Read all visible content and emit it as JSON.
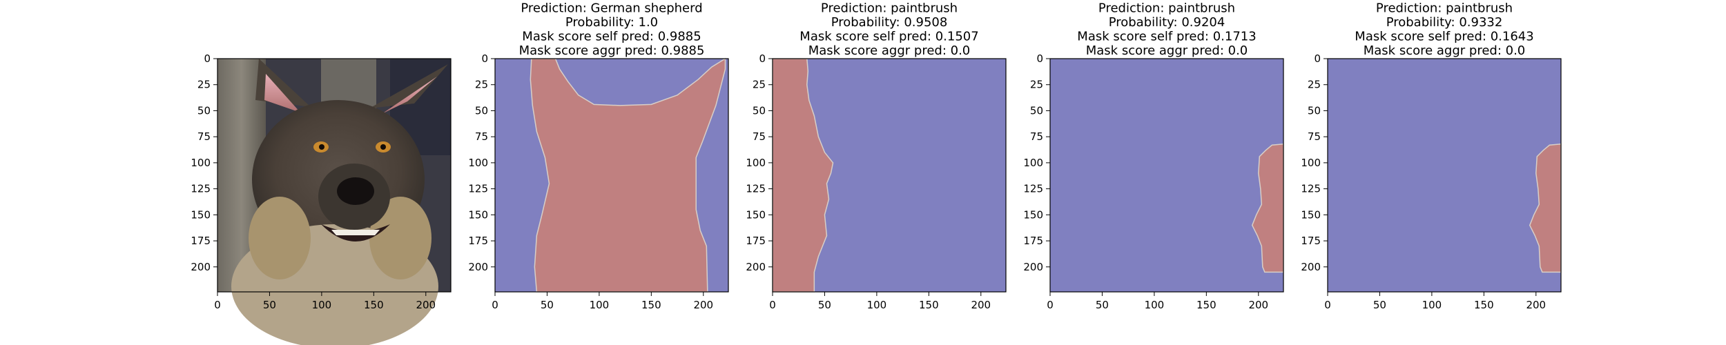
{
  "figure": {
    "background": "#ffffff"
  },
  "colors": {
    "background_class": "#8080c0",
    "object_class": "#c08080",
    "boundary": "#d8cfc8"
  },
  "panels": [
    {
      "kind": "photo",
      "title_lines": [],
      "image_description": "German shepherd dog face photo"
    },
    {
      "kind": "mask",
      "title_lines": [
        "Prediction: German shepherd",
        "Probability: 1.0",
        "Mask score self pred: 0.9885",
        "Mask score aggr pred: 0.9885"
      ]
    },
    {
      "kind": "mask",
      "title_lines": [
        "Prediction: paintbrush",
        "Probability: 0.9508",
        "Mask score self pred: 0.1507",
        "Mask score aggr pred: 0.0"
      ]
    },
    {
      "kind": "mask",
      "title_lines": [
        "Prediction: paintbrush",
        "Probability: 0.9204",
        "Mask score self pred: 0.1713",
        "Mask score aggr pred: 0.0"
      ]
    },
    {
      "kind": "mask",
      "title_lines": [
        "Prediction: paintbrush",
        "Probability: 0.9332",
        "Mask score self pred: 0.1643",
        "Mask score aggr pred: 0.0"
      ]
    }
  ],
  "chart_data": [
    {
      "type": "image",
      "panel": 1,
      "xlim": [
        0,
        224
      ],
      "ylim": [
        224,
        0
      ],
      "xticks": [
        0,
        50,
        100,
        150,
        200
      ],
      "yticks": [
        0,
        25,
        50,
        75,
        100,
        125,
        150,
        175,
        200
      ],
      "mask_region_outline": [
        [
          35,
          0
        ],
        [
          58,
          0
        ],
        [
          62,
          10
        ],
        [
          70,
          22
        ],
        [
          80,
          35
        ],
        [
          95,
          44
        ],
        [
          120,
          45
        ],
        [
          150,
          44
        ],
        [
          175,
          35
        ],
        [
          195,
          20
        ],
        [
          208,
          8
        ],
        [
          221,
          0
        ],
        [
          221,
          10
        ],
        [
          212,
          45
        ],
        [
          199,
          80
        ],
        [
          193,
          95
        ],
        [
          193,
          145
        ],
        [
          197,
          165
        ],
        [
          203,
          180
        ],
        [
          204,
          224
        ],
        [
          40,
          224
        ],
        [
          38,
          200
        ],
        [
          40,
          170
        ],
        [
          45,
          150
        ],
        [
          52,
          120
        ],
        [
          48,
          95
        ],
        [
          40,
          70
        ],
        [
          36,
          45
        ],
        [
          34,
          20
        ]
      ]
    },
    {
      "type": "image",
      "panel": 2,
      "xlim": [
        0,
        224
      ],
      "ylim": [
        224,
        0
      ],
      "xticks": [
        0,
        50,
        100,
        150,
        200
      ],
      "yticks": [
        0,
        25,
        50,
        75,
        100,
        125,
        150,
        175,
        200
      ],
      "mask_region_outline": [
        [
          0,
          0
        ],
        [
          33,
          0
        ],
        [
          34,
          12
        ],
        [
          33,
          25
        ],
        [
          35,
          40
        ],
        [
          40,
          55
        ],
        [
          44,
          75
        ],
        [
          50,
          90
        ],
        [
          58,
          100
        ],
        [
          56,
          110
        ],
        [
          52,
          120
        ],
        [
          54,
          135
        ],
        [
          50,
          150
        ],
        [
          52,
          170
        ],
        [
          44,
          190
        ],
        [
          40,
          205
        ],
        [
          40,
          224
        ],
        [
          0,
          224
        ]
      ]
    },
    {
      "type": "image",
      "panel": 3,
      "xlim": [
        0,
        224
      ],
      "ylim": [
        224,
        0
      ],
      "xticks": [
        0,
        50,
        100,
        150,
        200
      ],
      "yticks": [
        0,
        25,
        50,
        75,
        100,
        125,
        150,
        175,
        200
      ],
      "mask_region_outline": [
        [
          224,
          82
        ],
        [
          213,
          83
        ],
        [
          207,
          88
        ],
        [
          201,
          94
        ],
        [
          200,
          110
        ],
        [
          202,
          125
        ],
        [
          203,
          140
        ],
        [
          198,
          150
        ],
        [
          194,
          160
        ],
        [
          199,
          170
        ],
        [
          203,
          180
        ],
        [
          204,
          200
        ],
        [
          206,
          205
        ],
        [
          224,
          205
        ]
      ]
    },
    {
      "type": "image",
      "panel": 4,
      "xlim": [
        0,
        224
      ],
      "ylim": [
        224,
        0
      ],
      "xticks": [
        0,
        50,
        100,
        150,
        200
      ],
      "yticks": [
        0,
        25,
        50,
        75,
        100,
        125,
        150,
        175,
        200
      ],
      "mask_region_outline": [
        [
          224,
          82
        ],
        [
          213,
          83
        ],
        [
          207,
          88
        ],
        [
          201,
          94
        ],
        [
          200,
          110
        ],
        [
          202,
          125
        ],
        [
          203,
          140
        ],
        [
          198,
          150
        ],
        [
          194,
          160
        ],
        [
          199,
          170
        ],
        [
          203,
          180
        ],
        [
          204,
          200
        ],
        [
          206,
          205
        ],
        [
          224,
          205
        ]
      ]
    }
  ]
}
